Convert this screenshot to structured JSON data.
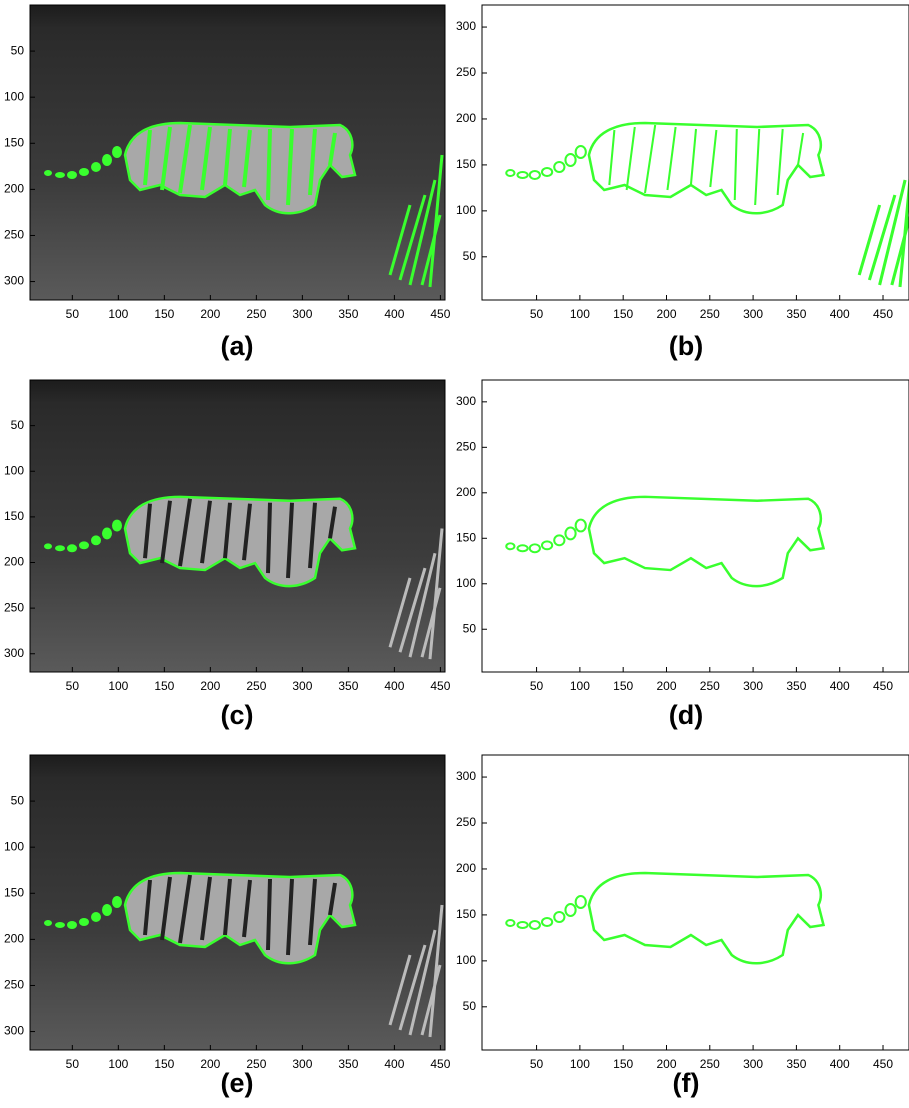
{
  "panels": [
    {
      "label": "(a)",
      "kind": "image",
      "stripes": true,
      "xlim": [
        4,
        455
      ],
      "ylim": [
        0,
        320
      ],
      "xticks": [
        50,
        100,
        150,
        200,
        250,
        300,
        350,
        400,
        450
      ],
      "yticks": [
        50,
        100,
        150,
        200,
        250,
        300
      ]
    },
    {
      "label": "(b)",
      "kind": "contour",
      "stripes": true,
      "xlim": [
        -13,
        480
      ],
      "ylim": [
        324,
        3
      ],
      "xticks": [
        50,
        100,
        150,
        200,
        250,
        300,
        350,
        400,
        450
      ],
      "yticks": [
        50,
        100,
        150,
        200,
        250,
        300
      ]
    },
    {
      "label": "(c)",
      "kind": "image",
      "stripes": false,
      "xlim": [
        4,
        455
      ],
      "ylim": [
        0,
        320
      ],
      "xticks": [
        50,
        100,
        150,
        200,
        250,
        300,
        350,
        400,
        450
      ],
      "yticks": [
        50,
        100,
        150,
        200,
        250,
        300
      ]
    },
    {
      "label": "(d)",
      "kind": "contour",
      "stripes": false,
      "xlim": [
        -13,
        480
      ],
      "ylim": [
        324,
        3
      ],
      "xticks": [
        50,
        100,
        150,
        200,
        250,
        300,
        350,
        400,
        450
      ],
      "yticks": [
        50,
        100,
        150,
        200,
        250,
        300
      ]
    },
    {
      "label": "(e)",
      "kind": "image",
      "stripes": false,
      "xlim": [
        4,
        455
      ],
      "ylim": [
        0,
        320
      ],
      "xticks": [
        50,
        100,
        150,
        200,
        250,
        300,
        350,
        400,
        450
      ],
      "yticks": [
        50,
        100,
        150,
        200,
        250,
        300
      ]
    },
    {
      "label": "(f)",
      "kind": "contour",
      "stripes": false,
      "xlim": [
        -13,
        480
      ],
      "ylim": [
        324,
        3
      ],
      "xticks": [
        50,
        100,
        150,
        200,
        250,
        300,
        350,
        400,
        450
      ],
      "yticks": [
        50,
        100,
        150,
        200,
        250,
        300
      ]
    }
  ]
}
